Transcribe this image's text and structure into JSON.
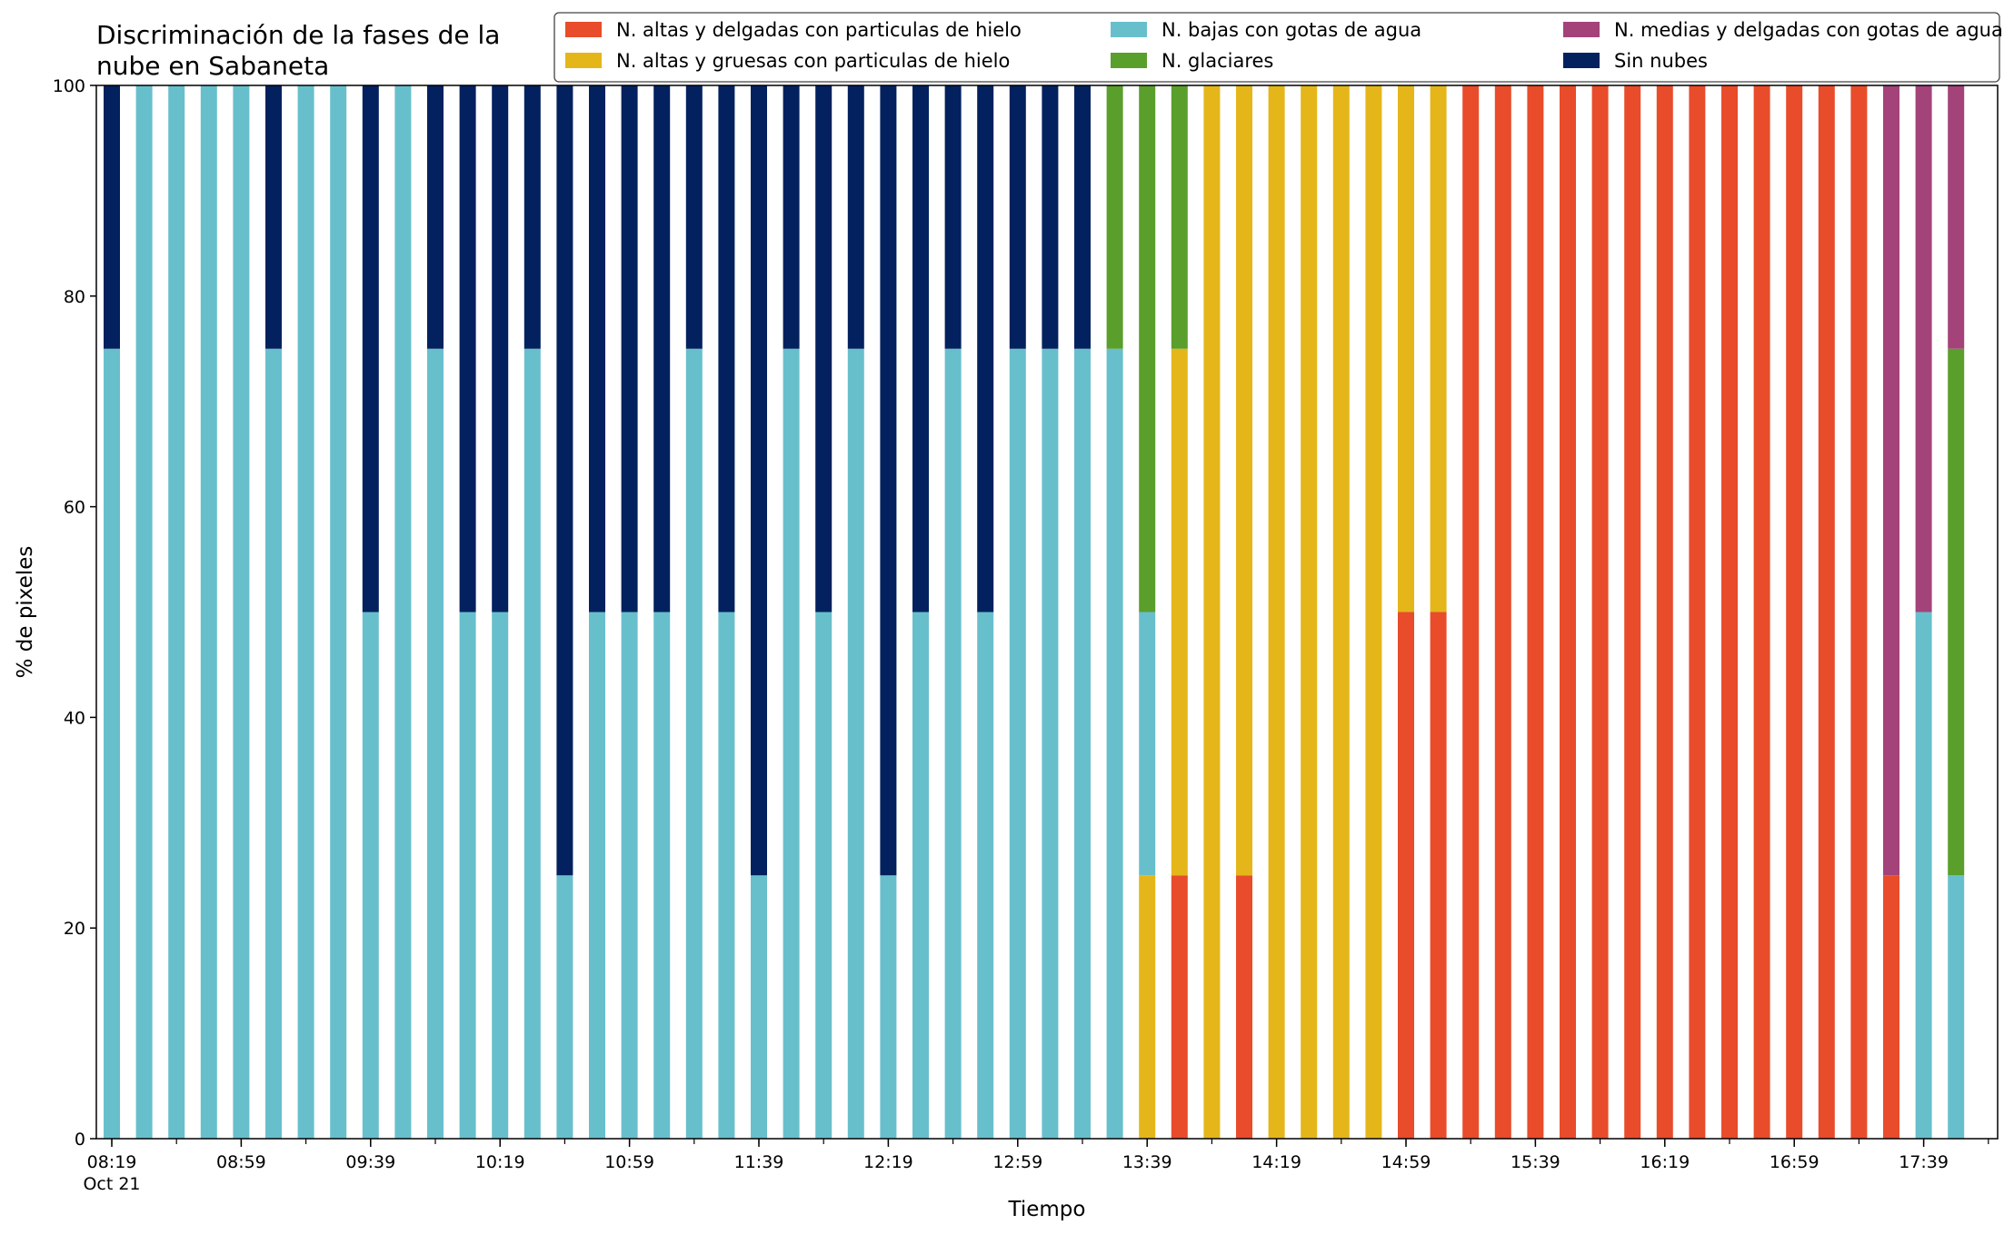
{
  "chart_data": {
    "type": "bar",
    "stacked": true,
    "title": "Discriminación de la fases de la\nnube en Sabaneta",
    "xlabel": "Tiempo",
    "ylabel": "% de pixeles",
    "ylim": [
      0,
      100
    ],
    "yticks": [
      0,
      20,
      40,
      60,
      80,
      100
    ],
    "grid": false,
    "legend_position": "top-right",
    "x_times": [
      "08:19",
      "08:29",
      "08:39",
      "08:49",
      "08:59",
      "09:09",
      "09:19",
      "09:29",
      "09:39",
      "09:49",
      "09:59",
      "10:09",
      "10:19",
      "10:29",
      "10:39",
      "10:49",
      "10:59",
      "11:09",
      "11:19",
      "11:29",
      "11:39",
      "11:49",
      "11:59",
      "12:09",
      "12:19",
      "12:29",
      "12:39",
      "12:49",
      "12:59",
      "13:09",
      "13:19",
      "13:29",
      "13:39",
      "13:49",
      "13:59",
      "14:09",
      "14:19",
      "14:29",
      "14:39",
      "14:49",
      "14:59",
      "15:09",
      "15:19",
      "15:29",
      "15:39",
      "15:49",
      "15:59",
      "16:09",
      "16:19",
      "16:29",
      "16:39",
      "16:49",
      "16:59",
      "17:09",
      "17:19",
      "17:29",
      "17:39",
      "17:49"
    ],
    "x_tick_labels": [
      {
        "index": 0,
        "label": "08:19",
        "sublabel": "Oct 21"
      },
      {
        "index": 4,
        "label": "08:59"
      },
      {
        "index": 8,
        "label": "09:39"
      },
      {
        "index": 12,
        "label": "10:19"
      },
      {
        "index": 16,
        "label": "10:59"
      },
      {
        "index": 20,
        "label": "11:39"
      },
      {
        "index": 24,
        "label": "12:19"
      },
      {
        "index": 28,
        "label": "12:59"
      },
      {
        "index": 32,
        "label": "13:39"
      },
      {
        "index": 36,
        "label": "14:19"
      },
      {
        "index": 40,
        "label": "14:59"
      },
      {
        "index": 44,
        "label": "15:39"
      },
      {
        "index": 48,
        "label": "16:19"
      },
      {
        "index": 52,
        "label": "16:59"
      },
      {
        "index": 56,
        "label": "17:39"
      }
    ],
    "series": [
      {
        "name": "N. altas y delgadas con particulas de hielo",
        "color": "#e84c2b",
        "values": [
          0,
          0,
          0,
          0,
          0,
          0,
          0,
          0,
          0,
          0,
          0,
          0,
          0,
          0,
          0,
          0,
          0,
          0,
          0,
          0,
          0,
          0,
          0,
          0,
          0,
          0,
          0,
          0,
          0,
          0,
          0,
          0,
          0,
          25,
          0,
          25,
          0,
          0,
          0,
          0,
          50,
          50,
          100,
          100,
          100,
          100,
          100,
          100,
          100,
          100,
          100,
          100,
          100,
          100,
          100,
          25,
          0,
          0
        ]
      },
      {
        "name": "N. altas y gruesas con particulas de hielo",
        "color": "#e4b61a",
        "values": [
          0,
          0,
          0,
          0,
          0,
          0,
          0,
          0,
          0,
          0,
          0,
          0,
          0,
          0,
          0,
          0,
          0,
          0,
          0,
          0,
          0,
          0,
          0,
          0,
          0,
          0,
          0,
          0,
          0,
          0,
          0,
          0,
          25,
          50,
          100,
          75,
          100,
          100,
          100,
          100,
          50,
          50,
          0,
          0,
          0,
          0,
          0,
          0,
          0,
          0,
          0,
          0,
          0,
          0,
          0,
          0,
          0,
          0
        ]
      },
      {
        "name": "N. bajas con gotas de agua",
        "color": "#68bfcc",
        "values": [
          75,
          100,
          100,
          100,
          100,
          75,
          100,
          100,
          50,
          100,
          75,
          50,
          50,
          75,
          25,
          50,
          50,
          50,
          75,
          50,
          25,
          75,
          50,
          75,
          25,
          50,
          75,
          50,
          75,
          75,
          75,
          75,
          25,
          0,
          0,
          0,
          0,
          0,
          0,
          0,
          0,
          0,
          0,
          0,
          0,
          0,
          0,
          0,
          0,
          0,
          0,
          0,
          0,
          0,
          0,
          0,
          50,
          25
        ]
      },
      {
        "name": "N. glaciares",
        "color": "#5a9e2c",
        "values": [
          0,
          0,
          0,
          0,
          0,
          0,
          0,
          0,
          0,
          0,
          0,
          0,
          0,
          0,
          0,
          0,
          0,
          0,
          0,
          0,
          0,
          0,
          0,
          0,
          0,
          0,
          0,
          0,
          0,
          0,
          0,
          25,
          50,
          25,
          0,
          0,
          0,
          0,
          0,
          0,
          0,
          0,
          0,
          0,
          0,
          0,
          0,
          0,
          0,
          0,
          0,
          0,
          0,
          0,
          0,
          0,
          0,
          50
        ]
      },
      {
        "name": "N. medias y delgadas con gotas de agua",
        "color": "#a3437a",
        "values": [
          0,
          0,
          0,
          0,
          0,
          0,
          0,
          0,
          0,
          0,
          0,
          0,
          0,
          0,
          0,
          0,
          0,
          0,
          0,
          0,
          0,
          0,
          0,
          0,
          0,
          0,
          0,
          0,
          0,
          0,
          0,
          0,
          0,
          0,
          0,
          0,
          0,
          0,
          0,
          0,
          0,
          0,
          0,
          0,
          0,
          0,
          0,
          0,
          0,
          0,
          0,
          0,
          0,
          0,
          0,
          75,
          50,
          25
        ]
      },
      {
        "name": "Sin nubes",
        "color": "#03215e",
        "values": [
          25,
          0,
          0,
          0,
          0,
          25,
          0,
          0,
          50,
          0,
          25,
          50,
          50,
          25,
          75,
          50,
          50,
          50,
          25,
          50,
          75,
          25,
          50,
          25,
          75,
          50,
          25,
          50,
          25,
          25,
          25,
          0,
          0,
          0,
          0,
          0,
          0,
          0,
          0,
          0,
          0,
          0,
          0,
          0,
          0,
          0,
          0,
          0,
          0,
          0,
          0,
          0,
          0,
          0,
          0,
          0,
          0,
          0
        ]
      }
    ],
    "legend_order": [
      0,
      1,
      2,
      3,
      4,
      5
    ]
  }
}
